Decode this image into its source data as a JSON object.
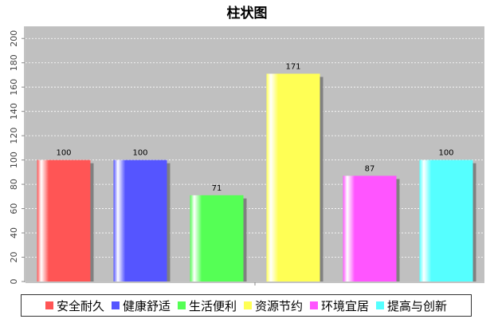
{
  "chart_data": {
    "type": "bar",
    "title": "柱状图",
    "categories": [
      "安全耐久",
      "健康舒适",
      "生活便利",
      "资源节约",
      "环境宜居",
      "提高与创新"
    ],
    "values": [
      100,
      100,
      71,
      171,
      87,
      100
    ],
    "colors": [
      "#ff5555",
      "#5555ff",
      "#55ff55",
      "#ffff55",
      "#ff55ff",
      "#55ffff"
    ],
    "ylim": [
      0,
      210
    ],
    "yticks": [
      0,
      20,
      40,
      60,
      80,
      100,
      120,
      140,
      160,
      180,
      200
    ],
    "grid": true,
    "plot_background": "#c0c0c0",
    "legend_position": "bottom"
  }
}
